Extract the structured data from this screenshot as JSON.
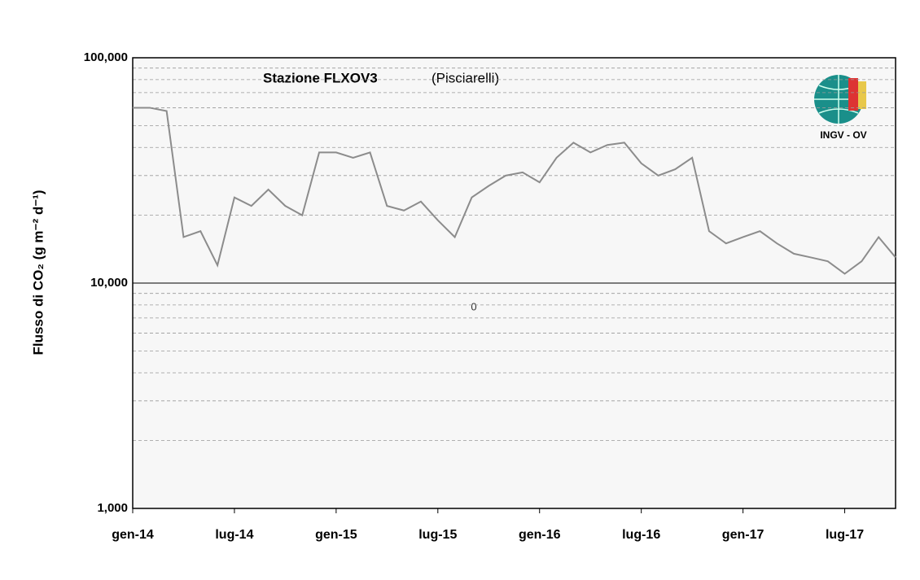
{
  "chart_data": {
    "type": "line",
    "title": "Stazione FLXOV3",
    "subtitle": "(Pisciarelli)",
    "y_label": "Flusso di CO₂ (g m⁻² d⁻¹)",
    "annotation": "0",
    "logo_text": "INGV - OV",
    "y_log": true,
    "grid": true,
    "ylim": [
      1000,
      100000
    ],
    "yticks": [
      {
        "value": 1000,
        "label": "1,000"
      },
      {
        "value": 10000,
        "label": "10,000"
      },
      {
        "value": 100000,
        "label": "100,000"
      }
    ],
    "y_minor_gridlines": [
      2000,
      3000,
      4000,
      5000,
      6000,
      7000,
      8000,
      9000,
      20000,
      30000,
      40000,
      50000,
      60000,
      70000,
      80000,
      90000
    ],
    "xlim": [
      "2014-01",
      "2017-10"
    ],
    "xticks": [
      {
        "value": "2014-01",
        "label": "gen-14"
      },
      {
        "value": "2014-07",
        "label": "lug-14"
      },
      {
        "value": "2015-01",
        "label": "gen-15"
      },
      {
        "value": "2015-07",
        "label": "lug-15"
      },
      {
        "value": "2016-01",
        "label": "gen-16"
      },
      {
        "value": "2016-07",
        "label": "lug-16"
      },
      {
        "value": "2017-01",
        "label": "gen-17"
      },
      {
        "value": "2017-07",
        "label": "lug-17"
      }
    ],
    "x": [
      "2014-01",
      "2014-02",
      "2014-03",
      "2014-04",
      "2014-05",
      "2014-06",
      "2014-07",
      "2014-08",
      "2014-09",
      "2014-10",
      "2014-11",
      "2014-12",
      "2015-01",
      "2015-02",
      "2015-03",
      "2015-04",
      "2015-05",
      "2015-06",
      "2015-07",
      "2015-08",
      "2015-09",
      "2015-10",
      "2015-11",
      "2015-12",
      "2016-01",
      "2016-02",
      "2016-03",
      "2016-04",
      "2016-05",
      "2016-06",
      "2016-07",
      "2016-08",
      "2016-09",
      "2016-10",
      "2016-11",
      "2016-12",
      "2017-01",
      "2017-02",
      "2017-03",
      "2017-04",
      "2017-05",
      "2017-06",
      "2017-07",
      "2017-08",
      "2017-09",
      "2017-10"
    ],
    "series": [
      {
        "color": "#8c8c8c",
        "values": [
          60000,
          60000,
          58000,
          16000,
          17000,
          12000,
          24000,
          22000,
          26000,
          22000,
          20000,
          38000,
          38000,
          36000,
          38000,
          22000,
          21000,
          23000,
          19000,
          16000,
          24000,
          27000,
          30000,
          31000,
          28000,
          36000,
          42000,
          38000,
          41000,
          42000,
          34000,
          30000,
          32000,
          36000,
          17000,
          15000,
          16000,
          17000,
          15000,
          13500,
          13000,
          12500,
          11000,
          12500,
          16000,
          13000
        ]
      }
    ]
  }
}
